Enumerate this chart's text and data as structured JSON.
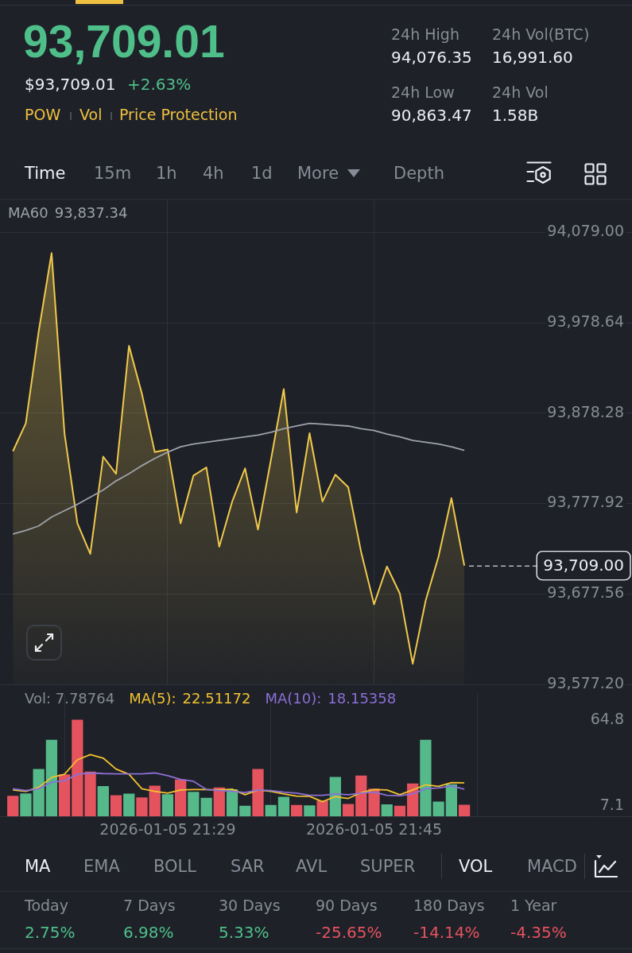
{
  "chart_data": [
    {
      "type": "other",
      "title": "93,709.01",
      "annotations": [
        "$93,709.01",
        "+2.63%",
        "POW",
        "Vol",
        "Price Protection",
        "24h High",
        "94,076.35",
        "24h Vol(BTC)",
        "16,991.60",
        "24h Low",
        "90,863.47",
        "24h Vol",
        "1.58B",
        "Time",
        "15m",
        "1h",
        "4h",
        "1d",
        "More",
        "Depth"
      ]
    },
    {
      "type": "area",
      "x": [
        "2026-01-05T21:17",
        "2026-01-05T21:18",
        "2026-01-05T21:19",
        "2026-01-05T21:20",
        "2026-01-05T21:21",
        "2026-01-05T21:22",
        "2026-01-05T21:23",
        "2026-01-05T21:24",
        "2026-01-05T21:25",
        "2026-01-05T21:26",
        "2026-01-05T21:27",
        "2026-01-05T21:28",
        "2026-01-05T21:29",
        "2026-01-05T21:30",
        "2026-01-05T21:31",
        "2026-01-05T21:32",
        "2026-01-05T21:33",
        "2026-01-05T21:34",
        "2026-01-05T21:35",
        "2026-01-05T21:36",
        "2026-01-05T21:37",
        "2026-01-05T21:38",
        "2026-01-05T21:39",
        "2026-01-05T21:40",
        "2026-01-05T21:41",
        "2026-01-05T21:42",
        "2026-01-05T21:43",
        "2026-01-05T21:44",
        "2026-01-05T21:45",
        "2026-01-05T21:46",
        "2026-01-05T21:47",
        "2026-01-05T21:48",
        "2026-01-05T21:49",
        "2026-01-05T21:50",
        "2026-01-05T21:51",
        "2026-01-05T21:52"
      ],
      "xlim": [
        "2026-01-05T21:16",
        "2026-01-05T22:05"
      ],
      "xticks": [
        {
          "value": "2026-01-05T21:29",
          "label": null
        },
        {
          "value": "2026-01-05T21:45",
          "label": null
        }
      ],
      "ylim": [
        93577.2,
        94116
      ],
      "yticks": [
        {
          "value": 93577.2,
          "label": "93,577.20"
        },
        {
          "value": 93677.56,
          "label": "93,677.56"
        },
        {
          "value": 93777.92,
          "label": "93,777.92"
        },
        {
          "value": 93878.28,
          "label": "93,878.28"
        },
        {
          "value": 93978.64,
          "label": "93,978.64"
        },
        {
          "value": 94079,
          "label": "94,079.00"
        }
      ],
      "series": [
        {
          "color": "#f0c94c",
          "values": [
            93836,
            93867,
            93969,
            94056,
            93856,
            93756,
            93722,
            93830,
            93811,
            93953,
            93900,
            93835,
            93838,
            93756,
            93809,
            93818,
            93730,
            93780,
            93817,
            93749,
            93826,
            93905,
            93768,
            93856,
            93780,
            93810,
            93796,
            93724,
            93666,
            93708,
            93678,
            93600,
            93670,
            93719,
            93784,
            93709
          ]
        },
        {
          "type": "line",
          "name": "MA60",
          "color": "#9ea2aa",
          "values": [
            93744,
            93748,
            93753,
            93763,
            93770,
            93777,
            93785,
            93793,
            93803,
            93811,
            93820,
            93828,
            93835,
            93841,
            93844,
            93846,
            93848,
            93850,
            93852,
            93854,
            93857,
            93861,
            93864,
            93867,
            93866,
            93865,
            93864,
            93861,
            93859,
            93855,
            93852,
            93848,
            93846,
            93844,
            93841,
            93837
          ]
        }
      ],
      "annotations": [
        "93,837.34"
      ],
      "ref_lines": [
        {
          "axis": "y",
          "value": 93709,
          "label": "93,709.00",
          "line_style": "dashed",
          "color": "#d8dade"
        }
      ],
      "grid": true,
      "legend": "top left",
      "marker": "none",
      "tick_labels": "y"
    },
    {
      "type": "bar",
      "x": [
        "2026-01-05T21:17",
        "2026-01-05T21:18",
        "2026-01-05T21:19",
        "2026-01-05T21:20",
        "2026-01-05T21:21",
        "2026-01-05T21:22",
        "2026-01-05T21:23",
        "2026-01-05T21:24",
        "2026-01-05T21:25",
        "2026-01-05T21:26",
        "2026-01-05T21:27",
        "2026-01-05T21:28",
        "2026-01-05T21:29",
        "2026-01-05T21:30",
        "2026-01-05T21:31",
        "2026-01-05T21:32",
        "2026-01-05T21:33",
        "2026-01-05T21:34",
        "2026-01-05T21:35",
        "2026-01-05T21:36",
        "2026-01-05T21:37",
        "2026-01-05T21:38",
        "2026-01-05T21:39",
        "2026-01-05T21:40",
        "2026-01-05T21:41",
        "2026-01-05T21:42",
        "2026-01-05T21:43",
        "2026-01-05T21:44",
        "2026-01-05T21:45",
        "2026-01-05T21:46",
        "2026-01-05T21:47",
        "2026-01-05T21:48",
        "2026-01-05T21:49",
        "2026-01-05T21:50",
        "2026-01-05T21:51",
        "2026-01-05T21:52"
      ],
      "xlim": [
        "2026-01-05T21:16",
        "2026-01-05T22:05"
      ],
      "xticks": [
        {
          "value": "2026-01-05T21:29",
          "label": "2026-01-05 21:29"
        },
        {
          "value": "2026-01-05T21:45",
          "label": "2026-01-05 21:45"
        }
      ],
      "ylim": [
        0,
        82
      ],
      "yticks": [
        7.1,
        64.8
      ],
      "series": [
        {
          "colors": [
            "#e5535f",
            "#55b98a",
            "#55b98a",
            "#55b98a",
            "#e5535f",
            "#e5535f",
            "#e5535f",
            "#55b98a",
            "#e5535f",
            "#55b98a",
            "#e5535f",
            "#e5535f",
            "#55b98a",
            "#e5535f",
            "#55b98a",
            "#55b98a",
            "#e5535f",
            "#55b98a",
            "#55b98a",
            "#e5535f",
            "#55b98a",
            "#55b98a",
            "#e5535f",
            "#55b98a",
            "#e5535f",
            "#55b98a",
            "#e5535f",
            "#e5535f",
            "#e5535f",
            "#55b98a",
            "#e5535f",
            "#e5535f",
            "#55b98a",
            "#55b98a",
            "#55b98a",
            "#e5535f"
          ],
          "values": [
            13.8,
            15.3,
            31.7,
            51.4,
            28.2,
            64.8,
            30.0,
            20.3,
            14.1,
            15.2,
            12.7,
            20.5,
            14.8,
            24.7,
            16.4,
            12.4,
            19.4,
            18.2,
            7.1,
            31.7,
            7.6,
            13.1,
            7.6,
            7.4,
            10.6,
            26.4,
            8.3,
            27.3,
            18.5,
            8.0,
            7.1,
            22.0,
            51.4,
            9.9,
            21.5,
            7.8
          ]
        },
        {
          "type": "line",
          "name": "MA(5):",
          "color": "#f0c230",
          "values": [
            17.7,
            16.8,
            19.4,
            26.1,
            28.2,
            37.9,
            41.4,
            39.1,
            31.7,
            28.2,
            18.5,
            16.8,
            15.6,
            17.7,
            18.0,
            18.0,
            17.7,
            18.2,
            14.5,
            17.7,
            16.8,
            15.0,
            13.6,
            13.4,
            9.8,
            13.2,
            12.0,
            15.9,
            18.0,
            17.7,
            14.5,
            17.7,
            21.2,
            20.1,
            22.6,
            22.5
          ]
        },
        {
          "type": "line",
          "name": "MA(10):",
          "color": "#8c6fd6",
          "values": [
            18.5,
            17.3,
            18.5,
            22.9,
            23.8,
            28.2,
            29.1,
            28.7,
            28.5,
            28.5,
            28.5,
            29.1,
            27.3,
            24.7,
            23.5,
            18.0,
            17.3,
            16.8,
            15.9,
            17.7,
            17.3,
            16.2,
            15.6,
            14.1,
            14.1,
            15.0,
            14.5,
            15.6,
            16.2,
            14.1,
            13.8,
            15.0,
            18.5,
            19.0,
            20.3,
            18.2
          ]
        }
      ],
      "annotations": [
        "Vol: 7.78764",
        "22.51172",
        "18.15358"
      ],
      "grid": "x",
      "legend": "top left",
      "marker": "none"
    },
    {
      "type": "other",
      "annotations": [
        "MA",
        "EMA",
        "BOLL",
        "SAR",
        "AVL",
        "SUPER",
        "VOL",
        "MACD",
        "Today",
        "7 Days",
        "30 Days",
        "90 Days",
        "180 Days",
        "1 Year",
        "2.75%",
        "6.98%",
        "5.33%",
        "-25.65%",
        "-14.14%",
        "-4.35%"
      ]
    }
  ]
}
